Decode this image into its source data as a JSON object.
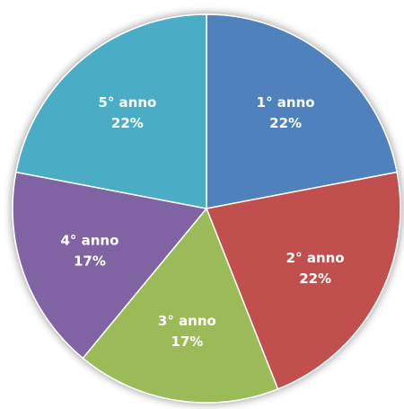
{
  "chart_data": {
    "type": "pie",
    "categories": [
      "1° anno",
      "2° anno",
      "3° anno",
      "4° anno",
      "5° anno"
    ],
    "values": [
      22,
      22,
      17,
      17,
      22
    ],
    "value_labels": [
      "22%",
      "22%",
      "17%",
      "17%",
      "22%"
    ],
    "colors": [
      "#4f81bd",
      "#c0504d",
      "#9bbb59",
      "#8064a2",
      "#4bacc6"
    ]
  }
}
